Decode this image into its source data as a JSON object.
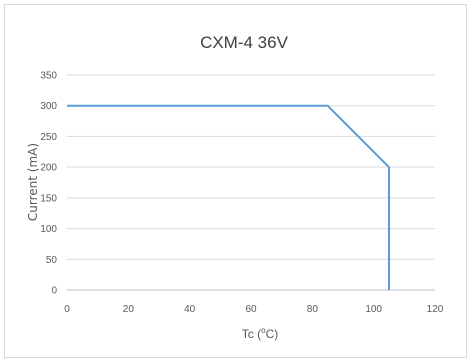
{
  "chart_data": {
    "type": "line",
    "title": "CXM-4 36V",
    "xlabel_main": "Tc (",
    "xlabel_sup": "o",
    "xlabel_end": "C)",
    "ylabel": "Current (mA)",
    "xlim": [
      0,
      120
    ],
    "ylim": [
      0,
      350
    ],
    "x_ticks": [
      0,
      20,
      40,
      60,
      80,
      100,
      120
    ],
    "y_ticks": [
      0,
      50,
      100,
      150,
      200,
      250,
      300,
      350
    ],
    "grid": true,
    "legend": "none",
    "series": [
      {
        "color": "#5b9bd5",
        "x": [
          0,
          85,
          105,
          105
        ],
        "y": [
          300,
          300,
          200,
          0
        ]
      }
    ]
  }
}
